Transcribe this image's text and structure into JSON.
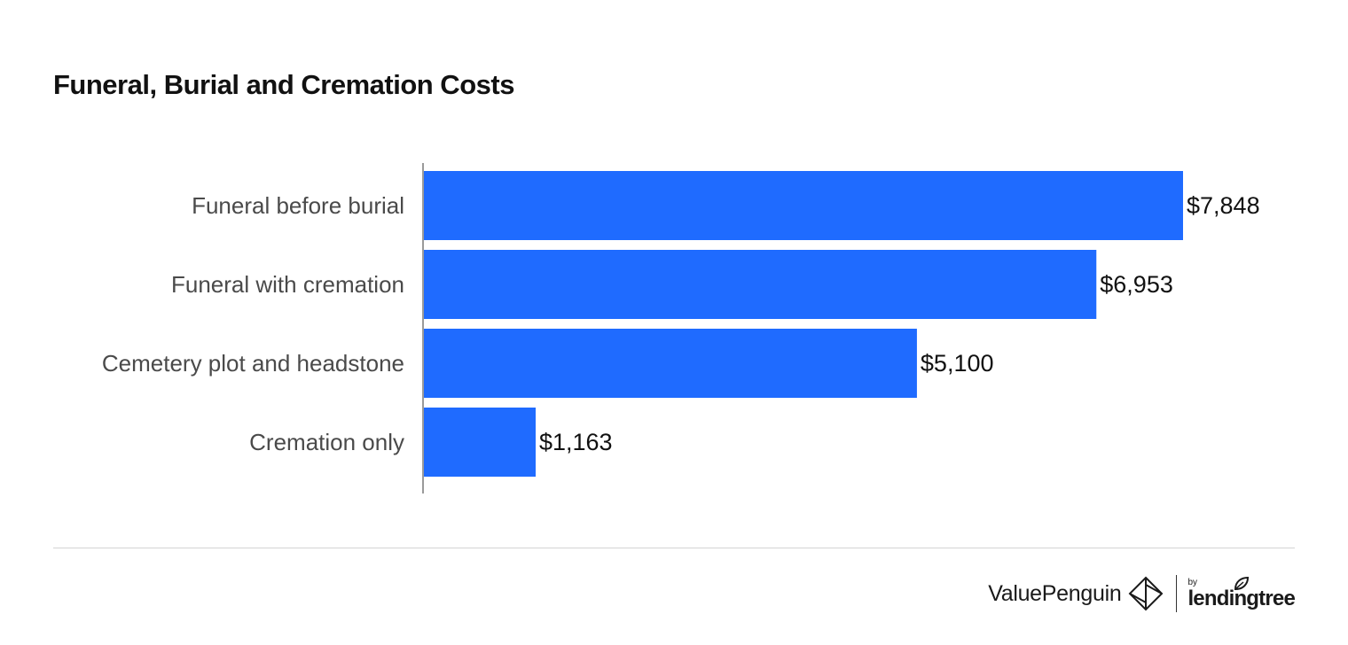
{
  "chart_data": {
    "type": "bar",
    "orientation": "horizontal",
    "title": "Funeral, Burial and Cremation Costs",
    "categories": [
      "Funeral before burial",
      "Funeral with cremation",
      "Cemetery plot and headstone",
      "Cremation only"
    ],
    "values": [
      7848,
      6953,
      5100,
      1163
    ],
    "value_labels": [
      "$7,848",
      "$6,953",
      "$5,100",
      "$1,163"
    ],
    "xlim": [
      0,
      7848
    ],
    "xlabel": "",
    "ylabel": "",
    "grid": false,
    "legend": "none",
    "bar_color": "#1f6bff"
  },
  "footer": {
    "brand": "ValuePenguin",
    "by": "by",
    "partner": "lendingtree",
    "logo_icon": "valuepenguin-logo-icon",
    "partner_icon": "leaf-icon"
  }
}
